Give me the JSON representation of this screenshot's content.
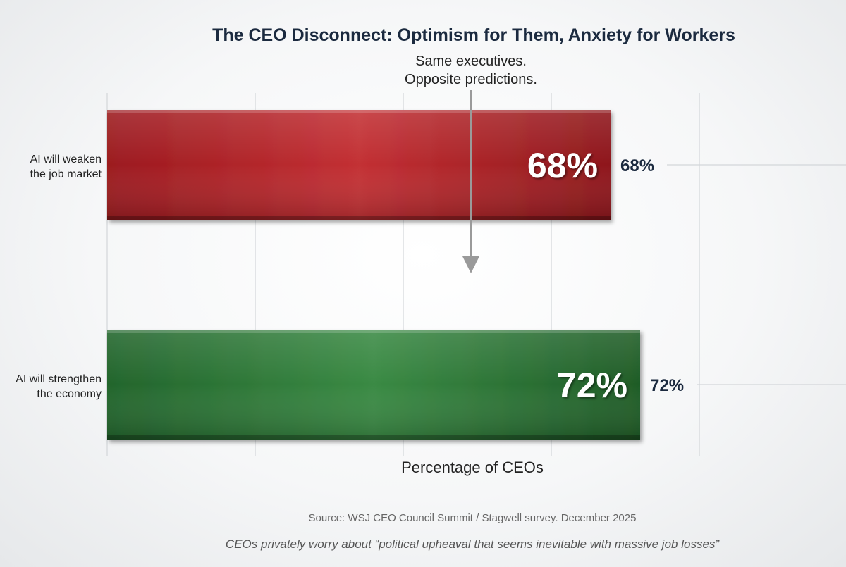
{
  "chart_data": {
    "type": "bar",
    "orientation": "horizontal",
    "title": "The CEO Disconnect: Optimism for Them, Anxiety for Workers",
    "annotation": [
      "Same executives.",
      "Opposite predictions."
    ],
    "categories": [
      [
        "AI will weaken",
        "the job market"
      ],
      [
        "AI will strengthen",
        "the economy"
      ]
    ],
    "values": [
      68,
      72
    ],
    "value_labels": [
      "68%",
      "72%"
    ],
    "colors": [
      "#b8262b",
      "#2e7a39"
    ],
    "xlabel": "Percentage of CEOs",
    "ylabel": "",
    "xlim": [
      0,
      100
    ],
    "grid": true,
    "source": "Source: WSJ CEO Council Summit / Stagwell survey. December 2025",
    "caption": "CEOs privately worry about “political upheaval that seems inevitable with massive job losses”"
  }
}
